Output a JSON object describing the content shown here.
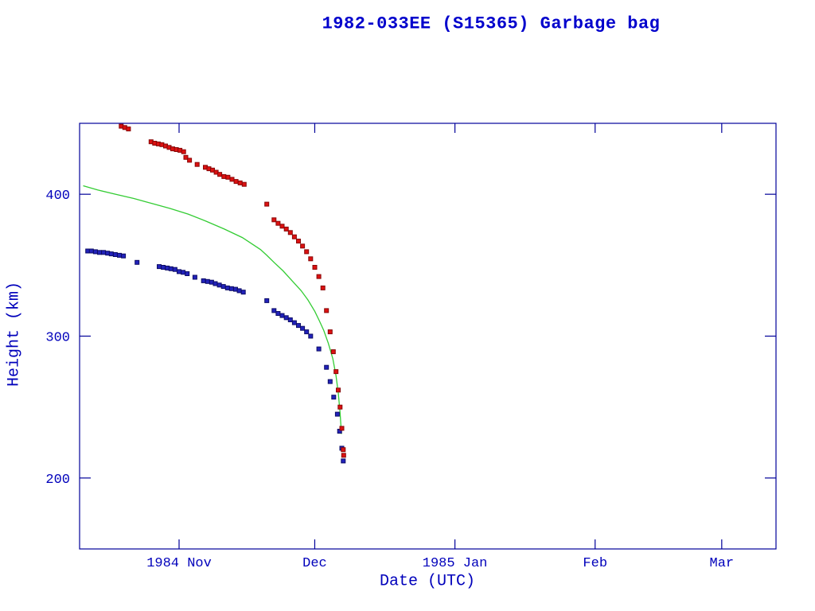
{
  "page": {
    "background": "#ffffff"
  },
  "chart_data": {
    "type": "scatter",
    "title": "1982-033EE (S15365) Garbage bag",
    "xlabel": "Date (UTC)",
    "ylabel": "Height (km)",
    "xlim": [
      0,
      154
    ],
    "ylim": [
      150,
      450
    ],
    "x_ticks": [
      {
        "pos": 22,
        "label": "1984 Nov"
      },
      {
        "pos": 52,
        "label": "Dec"
      },
      {
        "pos": 83,
        "label": "1985 Jan"
      },
      {
        "pos": 114,
        "label": "Feb"
      },
      {
        "pos": 142,
        "label": "Mar"
      }
    ],
    "y_ticks": [
      {
        "pos": 200,
        "label": "200"
      },
      {
        "pos": 300,
        "label": "300"
      },
      {
        "pos": 400,
        "label": "400"
      }
    ],
    "grid": false,
    "legend": null,
    "axis_color": "#000099",
    "text_color": "#0000bb",
    "title_color": "#0000cc",
    "x_unit": "days from left edge of plot (left edge = 1984 Oct 10)",
    "series": [
      {
        "name": "green-trend-line",
        "type": "line",
        "color": "#33cc33",
        "points": [
          [
            0.8,
            406
          ],
          [
            4,
            403
          ],
          [
            8,
            400
          ],
          [
            12,
            397
          ],
          [
            16,
            393.5
          ],
          [
            20,
            390
          ],
          [
            24,
            386
          ],
          [
            28,
            381
          ],
          [
            32,
            375.5
          ],
          [
            36,
            369.5
          ],
          [
            40,
            361
          ],
          [
            41.4,
            357
          ],
          [
            43,
            352
          ],
          [
            45,
            346
          ],
          [
            47,
            339
          ],
          [
            49,
            332
          ],
          [
            50.5,
            325.5
          ],
          [
            52,
            317.5
          ],
          [
            53,
            311
          ],
          [
            54,
            304
          ],
          [
            55,
            295
          ],
          [
            56,
            284
          ],
          [
            56.7,
            272
          ],
          [
            57.2,
            260
          ],
          [
            57.6,
            246
          ],
          [
            57.9,
            231
          ]
        ]
      },
      {
        "name": "blue-squares",
        "type": "scatter",
        "marker": "square",
        "color": "#2222bb",
        "edge": "#0d0d66",
        "points": [
          [
            1.8,
            360
          ],
          [
            2.6,
            360
          ],
          [
            3.5,
            359.5
          ],
          [
            4.4,
            359
          ],
          [
            5.3,
            359
          ],
          [
            6.2,
            358.5
          ],
          [
            7.0,
            358
          ],
          [
            7.9,
            357.5
          ],
          [
            8.8,
            357
          ],
          [
            9.7,
            356.5
          ],
          [
            12.7,
            352
          ],
          [
            17.6,
            349
          ],
          [
            18.5,
            348.5
          ],
          [
            19.4,
            348
          ],
          [
            20.2,
            347.5
          ],
          [
            21.1,
            347
          ],
          [
            22.0,
            345.5
          ],
          [
            22.9,
            345
          ],
          [
            23.8,
            344
          ],
          [
            25.5,
            341.5
          ],
          [
            27.4,
            339
          ],
          [
            28.3,
            338.5
          ],
          [
            29.2,
            338
          ],
          [
            30.0,
            337
          ],
          [
            30.9,
            336
          ],
          [
            31.8,
            335
          ],
          [
            32.7,
            334
          ],
          [
            33.6,
            333.5
          ],
          [
            34.5,
            333
          ],
          [
            35.3,
            332
          ],
          [
            36.2,
            331
          ],
          [
            41.4,
            325
          ],
          [
            43.0,
            318
          ],
          [
            43.9,
            316
          ],
          [
            44.8,
            314.5
          ],
          [
            45.7,
            313
          ],
          [
            46.6,
            311.5
          ],
          [
            47.5,
            309.5
          ],
          [
            48.4,
            307.5
          ],
          [
            49.3,
            305.5
          ],
          [
            50.2,
            303
          ],
          [
            51.1,
            300
          ],
          [
            52.9,
            291
          ],
          [
            54.6,
            278
          ],
          [
            55.4,
            268
          ],
          [
            56.2,
            257
          ],
          [
            57.0,
            245
          ],
          [
            57.5,
            233
          ],
          [
            58.0,
            221
          ],
          [
            58.3,
            212
          ]
        ]
      },
      {
        "name": "red-squares",
        "type": "scatter",
        "marker": "square",
        "color": "#dd1111",
        "edge": "#880808",
        "points": [
          [
            9.2,
            448
          ],
          [
            10.0,
            447
          ],
          [
            10.8,
            446
          ],
          [
            15.8,
            437
          ],
          [
            16.6,
            436
          ],
          [
            17.4,
            435.5
          ],
          [
            18.2,
            435
          ],
          [
            19.0,
            434
          ],
          [
            19.8,
            433
          ],
          [
            20.6,
            432
          ],
          [
            21.4,
            431.5
          ],
          [
            22.2,
            431
          ],
          [
            23.0,
            430
          ],
          [
            23.5,
            426
          ],
          [
            24.3,
            424
          ],
          [
            26.0,
            421
          ],
          [
            27.8,
            419
          ],
          [
            28.6,
            418
          ],
          [
            29.4,
            417
          ],
          [
            30.2,
            415.5
          ],
          [
            31.0,
            414
          ],
          [
            31.9,
            412.5
          ],
          [
            32.8,
            412
          ],
          [
            33.7,
            410.5
          ],
          [
            34.6,
            409
          ],
          [
            35.5,
            408
          ],
          [
            36.4,
            407
          ],
          [
            41.4,
            393
          ],
          [
            43.0,
            382
          ],
          [
            43.9,
            379.5
          ],
          [
            44.8,
            377.5
          ],
          [
            45.7,
            375.5
          ],
          [
            46.6,
            373
          ],
          [
            47.5,
            370
          ],
          [
            48.4,
            367
          ],
          [
            49.3,
            363.5
          ],
          [
            50.2,
            359.5
          ],
          [
            51.1,
            354.5
          ],
          [
            52.0,
            348.5
          ],
          [
            52.9,
            342
          ],
          [
            53.8,
            334
          ],
          [
            54.6,
            318
          ],
          [
            55.4,
            303
          ],
          [
            56.1,
            289
          ],
          [
            56.7,
            275
          ],
          [
            57.2,
            262
          ],
          [
            57.6,
            250
          ],
          [
            58.0,
            235
          ],
          [
            58.3,
            220
          ],
          [
            58.4,
            216
          ]
        ]
      }
    ]
  }
}
